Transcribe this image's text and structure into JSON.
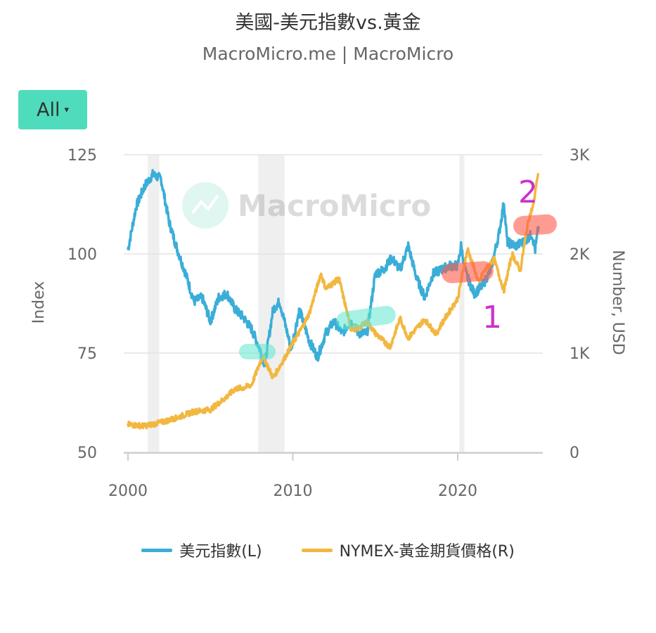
{
  "header": {
    "title": "美國-美元指數vs.黃金",
    "subtitle": "MacroMicro.me | MacroMicro"
  },
  "range_button": {
    "label": "All",
    "caret": "▾"
  },
  "watermark": "MacroMicro",
  "annotations": [
    {
      "label": "1",
      "color": "#cc33cc"
    },
    {
      "label": "2",
      "color": "#cc33cc"
    }
  ],
  "chart_data": {
    "type": "line",
    "title": "美國-美元指數vs.黃金",
    "xlabel": "",
    "ylabel_left": "Index",
    "ylabel_right": "Number, USD",
    "xlim": [
      2000,
      2025
    ],
    "ylim_left": [
      50,
      125
    ],
    "ylim_right": [
      0,
      3000
    ],
    "x_ticks": [
      "2000",
      "2010",
      "2020"
    ],
    "y_ticks_left": [
      "125",
      "100",
      "75",
      "50"
    ],
    "y_ticks_right": [
      "3K",
      "2K",
      "1K",
      "0"
    ],
    "recessions": [
      [
        2001.2,
        2001.9
      ],
      [
        2007.9,
        2009.5
      ],
      [
        2020.1,
        2020.4
      ]
    ],
    "grid": true,
    "legend_position": "bottom",
    "series": [
      {
        "name": "美元指數(L)",
        "axis": "left",
        "color": "#3aaed8",
        "x": [
          2000,
          2000.5,
          2001,
          2001.5,
          2002,
          2002.5,
          2003,
          2003.5,
          2004,
          2004.5,
          2005,
          2005.5,
          2006,
          2006.5,
          2007,
          2007.5,
          2008,
          2008.3,
          2008.8,
          2009.2,
          2009.9,
          2010.4,
          2011,
          2011.5,
          2012,
          2012.5,
          2013,
          2013.5,
          2014,
          2014.5,
          2015,
          2015.5,
          2016,
          2016.5,
          2017,
          2017.5,
          2018,
          2018.5,
          2019,
          2019.5,
          2020,
          2020.2,
          2020.5,
          2021,
          2021.5,
          2022,
          2022.5,
          2022.8,
          2023,
          2023.5,
          2024,
          2024.5,
          2024.7,
          2024.9
        ],
        "values": [
          101,
          112,
          117,
          120,
          119,
          108,
          101,
          95,
          88,
          89,
          83,
          89,
          90,
          86,
          84,
          81,
          76,
          72,
          86,
          88,
          76,
          86,
          78,
          74,
          80,
          83,
          80,
          83,
          80,
          80,
          95,
          96,
          99,
          96,
          102,
          94,
          89,
          95,
          96,
          97,
          97,
          102,
          95,
          90,
          92,
          96,
          105,
          113,
          103,
          102,
          103,
          105,
          101,
          107
        ]
      },
      {
        "name": "NYMEX-黃金期貨價格(R)",
        "axis": "right",
        "color": "#f2b740",
        "x": [
          2000,
          2001,
          2002,
          2003,
          2004,
          2005,
          2006,
          2006.5,
          2007,
          2007.5,
          2008,
          2008.2,
          2008.8,
          2009.5,
          2010,
          2010.5,
          2011,
          2011.7,
          2012,
          2012.8,
          2013.3,
          2013.5,
          2014,
          2014.5,
          2015,
          2015.9,
          2016.5,
          2017,
          2017.5,
          2018,
          2018.7,
          2019,
          2019.5,
          2020,
          2020.6,
          2021,
          2021.3,
          2021.5,
          2022.2,
          2022.8,
          2023.3,
          2023.8,
          2024,
          2024.3,
          2024.6,
          2024.8,
          2024.9
        ],
        "values": [
          280,
          265,
          300,
          350,
          410,
          430,
          560,
          640,
          650,
          680,
          900,
          970,
          750,
          950,
          1100,
          1240,
          1400,
          1800,
          1650,
          1750,
          1400,
          1250,
          1250,
          1320,
          1200,
          1060,
          1350,
          1150,
          1250,
          1340,
          1190,
          1290,
          1420,
          1550,
          2050,
          1850,
          1700,
          1800,
          1950,
          1630,
          2000,
          1830,
          2050,
          2350,
          2500,
          2750,
          2800
        ]
      }
    ]
  }
}
